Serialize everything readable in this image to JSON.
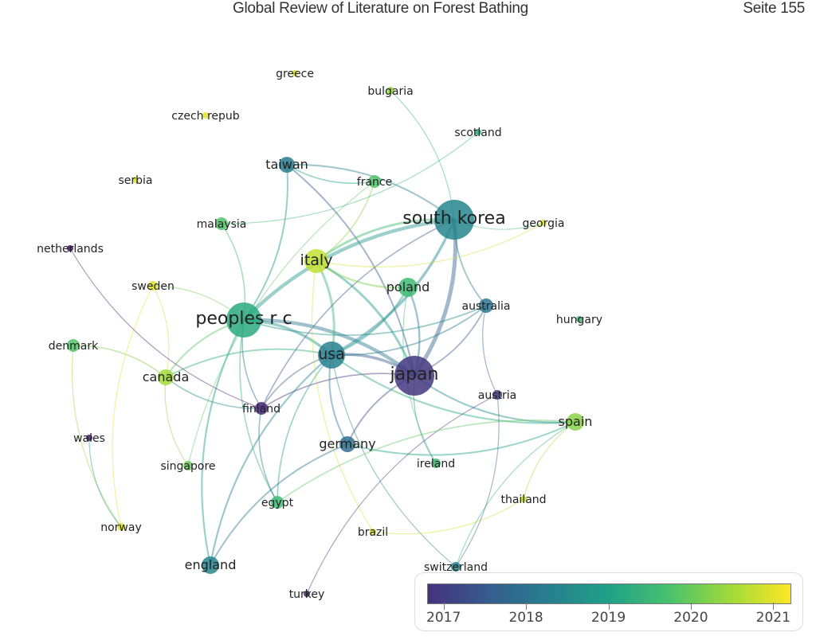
{
  "header": {
    "title": "Global Review of Literature on Forest Bathing",
    "page": "Seite 155"
  },
  "network": {
    "color_by": "average publication year",
    "nodes": [
      {
        "label": "greece",
        "year": 2021.0
      },
      {
        "label": "bulgaria",
        "year": 2020.5
      },
      {
        "label": "czech repub",
        "year": 2021.0
      },
      {
        "label": "scotland",
        "year": 2019.5
      },
      {
        "label": "taiwan",
        "year": 2018.6
      },
      {
        "label": "france",
        "year": 2020.0
      },
      {
        "label": "serbia",
        "year": 2021.0
      },
      {
        "label": "malaysia",
        "year": 2020.0
      },
      {
        "label": "south korea",
        "year": 2018.8
      },
      {
        "label": "georgia",
        "year": 2021.0
      },
      {
        "label": "netherlands",
        "year": 2017.0
      },
      {
        "label": "italy",
        "year": 2020.8
      },
      {
        "label": "poland",
        "year": 2019.8
      },
      {
        "label": "sweden",
        "year": 2021.0
      },
      {
        "label": "australia",
        "year": 2018.5
      },
      {
        "label": "hungary",
        "year": 2019.8
      },
      {
        "label": "peoples r c",
        "year": 2019.5
      },
      {
        "label": "denmark",
        "year": 2020.0
      },
      {
        "label": "usa",
        "year": 2018.7
      },
      {
        "label": "japan",
        "year": 2017.5
      },
      {
        "label": "canada",
        "year": 2020.6
      },
      {
        "label": "austria",
        "year": 2017.6
      },
      {
        "label": "finland",
        "year": 2017.3
      },
      {
        "label": "spain",
        "year": 2020.4
      },
      {
        "label": "wales",
        "year": 2017.2
      },
      {
        "label": "germany",
        "year": 2018.4
      },
      {
        "label": "ireland",
        "year": 2019.8
      },
      {
        "label": "singapore",
        "year": 2020.2
      },
      {
        "label": "thailand",
        "year": 2020.8
      },
      {
        "label": "egypt",
        "year": 2019.8
      },
      {
        "label": "norway",
        "year": 2021.0
      },
      {
        "label": "brazil",
        "year": 2021.0
      },
      {
        "label": "england",
        "year": 2018.8
      },
      {
        "label": "switzerland",
        "year": 2018.7
      },
      {
        "label": "turkey",
        "year": 2017.2
      }
    ],
    "links": [
      [
        "japan",
        "south korea"
      ],
      [
        "japan",
        "usa"
      ],
      [
        "japan",
        "peoples r c"
      ],
      [
        "japan",
        "poland"
      ],
      [
        "japan",
        "australia"
      ],
      [
        "japan",
        "finland"
      ],
      [
        "japan",
        "italy"
      ],
      [
        "japan",
        "germany"
      ],
      [
        "japan",
        "spain"
      ],
      [
        "japan",
        "ireland"
      ],
      [
        "japan",
        "taiwan"
      ],
      [
        "usa",
        "south korea"
      ],
      [
        "usa",
        "peoples r c"
      ],
      [
        "usa",
        "italy"
      ],
      [
        "usa",
        "poland"
      ],
      [
        "usa",
        "australia"
      ],
      [
        "usa",
        "canada"
      ],
      [
        "usa",
        "finland"
      ],
      [
        "usa",
        "germany"
      ],
      [
        "usa",
        "england"
      ],
      [
        "usa",
        "spain"
      ],
      [
        "usa",
        "switzerland"
      ],
      [
        "usa",
        "egypt"
      ],
      [
        "south korea",
        "peoples r c"
      ],
      [
        "south korea",
        "italy"
      ],
      [
        "south korea",
        "bulgaria"
      ],
      [
        "south korea",
        "georgia"
      ],
      [
        "south korea",
        "australia"
      ],
      [
        "south korea",
        "taiwan"
      ],
      [
        "south korea",
        "finland"
      ],
      [
        "peoples r c",
        "taiwan"
      ],
      [
        "peoples r c",
        "malaysia"
      ],
      [
        "peoples r c",
        "sweden"
      ],
      [
        "peoples r c",
        "canada"
      ],
      [
        "peoples r c",
        "england"
      ],
      [
        "peoples r c",
        "egypt"
      ],
      [
        "peoples r c",
        "australia"
      ],
      [
        "peoples r c",
        "finland"
      ],
      [
        "italy",
        "france"
      ],
      [
        "italy",
        "poland"
      ],
      [
        "italy",
        "brazil"
      ],
      [
        "italy",
        "georgia"
      ],
      [
        "taiwan",
        "france"
      ],
      [
        "malaysia",
        "scotland"
      ],
      [
        "canada",
        "sweden"
      ],
      [
        "canada",
        "denmark"
      ],
      [
        "canada",
        "singapore"
      ],
      [
        "canada",
        "finland"
      ],
      [
        "sweden",
        "norway"
      ],
      [
        "denmark",
        "norway"
      ],
      [
        "netherlands",
        "finland"
      ],
      [
        "wales",
        "norway"
      ],
      [
        "germany",
        "england"
      ],
      [
        "germany",
        "spain"
      ],
      [
        "australia",
        "austria"
      ],
      [
        "austria",
        "turkey"
      ],
      [
        "spain",
        "thailand"
      ],
      [
        "spain",
        "switzerland"
      ],
      [
        "spain",
        "egypt"
      ],
      [
        "brazil",
        "thailand"
      ],
      [
        "switzerland",
        "austria"
      ],
      [
        "finland",
        "egypt"
      ],
      [
        "poland",
        "ireland"
      ],
      [
        "france",
        "singapore"
      ]
    ]
  },
  "legend": {
    "ticks": [
      "2017",
      "2018",
      "2019",
      "2020",
      "2021"
    ],
    "range": [
      2016.8,
      2021.2
    ],
    "colormap": "viridis"
  }
}
